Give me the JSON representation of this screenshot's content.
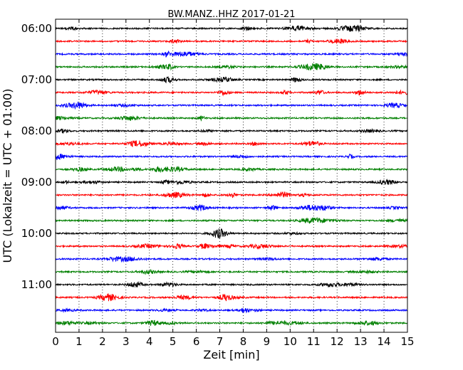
{
  "chart_data": {
    "type": "line",
    "subtype": "helicorder",
    "title": "BW.MANZ..HHZ 2017-01-21",
    "xlabel": "Zeit  [min]",
    "ylabel": "UTC (Lokalzeit = UTC + 01:00)",
    "xlim": [
      0,
      15
    ],
    "x_ticks": [
      "0",
      "1",
      "2",
      "3",
      "4",
      "5",
      "6",
      "7",
      "8",
      "9",
      "10",
      "11",
      "12",
      "13",
      "14",
      "15"
    ],
    "y_tick_labels": [
      "06:00",
      "07:00",
      "08:00",
      "09:00",
      "10:00",
      "11:00"
    ],
    "trace_minutes": 15,
    "trace_count": 24,
    "trace_colors": [
      "#000000",
      "#ff0000",
      "#0000ff",
      "#008000"
    ],
    "grid": {
      "vertical_dotted_lines_every_min": 1
    },
    "legend": "none"
  }
}
